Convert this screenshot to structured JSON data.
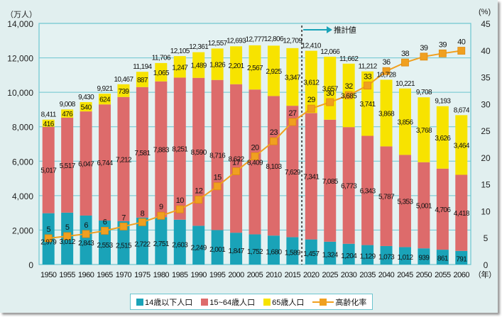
{
  "chart_data": {
    "type": "bar",
    "subtype": "stacked-bar-with-line",
    "title": "",
    "left_axis_unit": "（万人）",
    "right_axis_unit": "(%)",
    "x_unit": "（年）",
    "categories": [
      "1950",
      "1955",
      "1960",
      "1965",
      "1970",
      "1975",
      "1980",
      "1985",
      "1990",
      "1995",
      "2000",
      "2005",
      "2010",
      "2015",
      "2020",
      "2025",
      "2030",
      "2035",
      "2040",
      "2045",
      "2050",
      "2055",
      "2060"
    ],
    "left_ylim": [
      0,
      14000
    ],
    "left_ticks": [
      "0",
      "2,000",
      "4,000",
      "6,000",
      "8,000",
      "10,000",
      "12,000",
      "14,000"
    ],
    "right_ylim": [
      0,
      45
    ],
    "right_ticks": [
      "0",
      "5",
      "10",
      "15",
      "20",
      "25",
      "30",
      "35",
      "40",
      "45"
    ],
    "grid": true,
    "series": [
      {
        "name": "14歳以下人口",
        "color": "#1aa3b8",
        "axis": "left",
        "values": [
          2979,
          3012,
          2843,
          2553,
          2515,
          2722,
          2751,
          2603,
          2249,
          2001,
          1847,
          1752,
          1680,
          1589,
          1457,
          1324,
          1204,
          1129,
          1073,
          1012,
          939,
          861,
          791
        ],
        "labels": [
          "2,979",
          "3,012",
          "2,843",
          "2,553",
          "2,515",
          "2,722",
          "2,751",
          "2,603",
          "2,249",
          "2,001",
          "1,847",
          "1,752",
          "1,680",
          "1,589",
          "1,457",
          "1,324",
          "1,204",
          "1,129",
          "1,073",
          "1,012",
          "939",
          "861",
          "791"
        ]
      },
      {
        "name": "15~64歳人口",
        "color": "#dd6b6b",
        "axis": "left",
        "values": [
          5017,
          5517,
          6047,
          6744,
          7212,
          7581,
          7883,
          8251,
          8590,
          8716,
          8622,
          8409,
          8103,
          7629,
          7341,
          7085,
          6773,
          6343,
          5787,
          5353,
          5001,
          4706,
          4418
        ],
        "labels": [
          "5,017",
          "5,517",
          "6,047",
          "6,744",
          "7,212",
          "7,581",
          "7,883",
          "8,251",
          "8,590",
          "8,716",
          "8,622",
          "8,409",
          "8,103",
          "7,629",
          "7,341",
          "7,085",
          "6,773",
          "6,343",
          "5,787",
          "5,353",
          "5,001",
          "4,706",
          "4,418"
        ]
      },
      {
        "name": "65歳人口",
        "color": "#f7e300",
        "axis": "left",
        "values": [
          416,
          476,
          540,
          624,
          739,
          887,
          1065,
          1247,
          1489,
          1826,
          2201,
          2567,
          2925,
          3347,
          3612,
          3657,
          3685,
          3741,
          3868,
          3856,
          3768,
          3626,
          3464
        ],
        "labels": [
          "416",
          "476",
          "540",
          "624",
          "739",
          "887",
          "1,065",
          "1,247",
          "1,489",
          "1,826",
          "2,201",
          "2,567",
          "2,925",
          "3,347",
          "3,612",
          "3,657",
          "3,685",
          "3,741",
          "3,868",
          "3,856",
          "3,768",
          "3,626",
          "3,464"
        ]
      },
      {
        "name": "高齢化率",
        "type": "line",
        "color": "#f0a020",
        "axis": "right",
        "values": [
          4.9,
          5.3,
          5.7,
          6.3,
          7.1,
          7.9,
          9.1,
          10.3,
          12.1,
          14.6,
          17.4,
          20.2,
          23.0,
          26.6,
          29.1,
          30.3,
          31.6,
          33.4,
          36.1,
          37.7,
          38.8,
          39.4,
          39.9
        ],
        "labels": [
          "5",
          "5",
          "6",
          "6",
          "7",
          "8",
          "9",
          "10",
          "12",
          "15",
          "17",
          "20",
          "23",
          "27",
          "29",
          "30",
          "32",
          "33",
          "36",
          "38",
          "39",
          "39",
          "40"
        ]
      }
    ],
    "totals": [
      8411,
      9008,
      9430,
      9921,
      10467,
      11194,
      11706,
      12105,
      12361,
      12557,
      12693,
      12777,
      12806,
      12709,
      12410,
      12066,
      11662,
      11212,
      10728,
      10221,
      9708,
      9193,
      8674
    ],
    "total_labels": [
      "8,411",
      "9,008",
      "9,430",
      "9,921",
      "10,467",
      "11,194",
      "11,706",
      "12,105",
      "12,361",
      "12,557",
      "12,693",
      "12,777",
      "12,806",
      "12,709",
      "12,410",
      "12,066",
      "11,662",
      "11,212",
      "10,728",
      "10,221",
      "9,708",
      "9,193",
      "8,674"
    ],
    "projection": {
      "label": "推計値",
      "starts_after": "2015",
      "color": "#1aa3b8"
    },
    "legend_position": "bottom-center"
  },
  "legend": {
    "items": [
      {
        "label": "14歳以下人口",
        "color": "#1aa3b8",
        "kind": "box"
      },
      {
        "label": "15~64歳人口",
        "color": "#dd6b6b",
        "kind": "box"
      },
      {
        "label": "65歳人口",
        "color": "#f7e300",
        "kind": "box"
      },
      {
        "label": "高齢化率",
        "color": "#f0a020",
        "kind": "line"
      }
    ]
  }
}
